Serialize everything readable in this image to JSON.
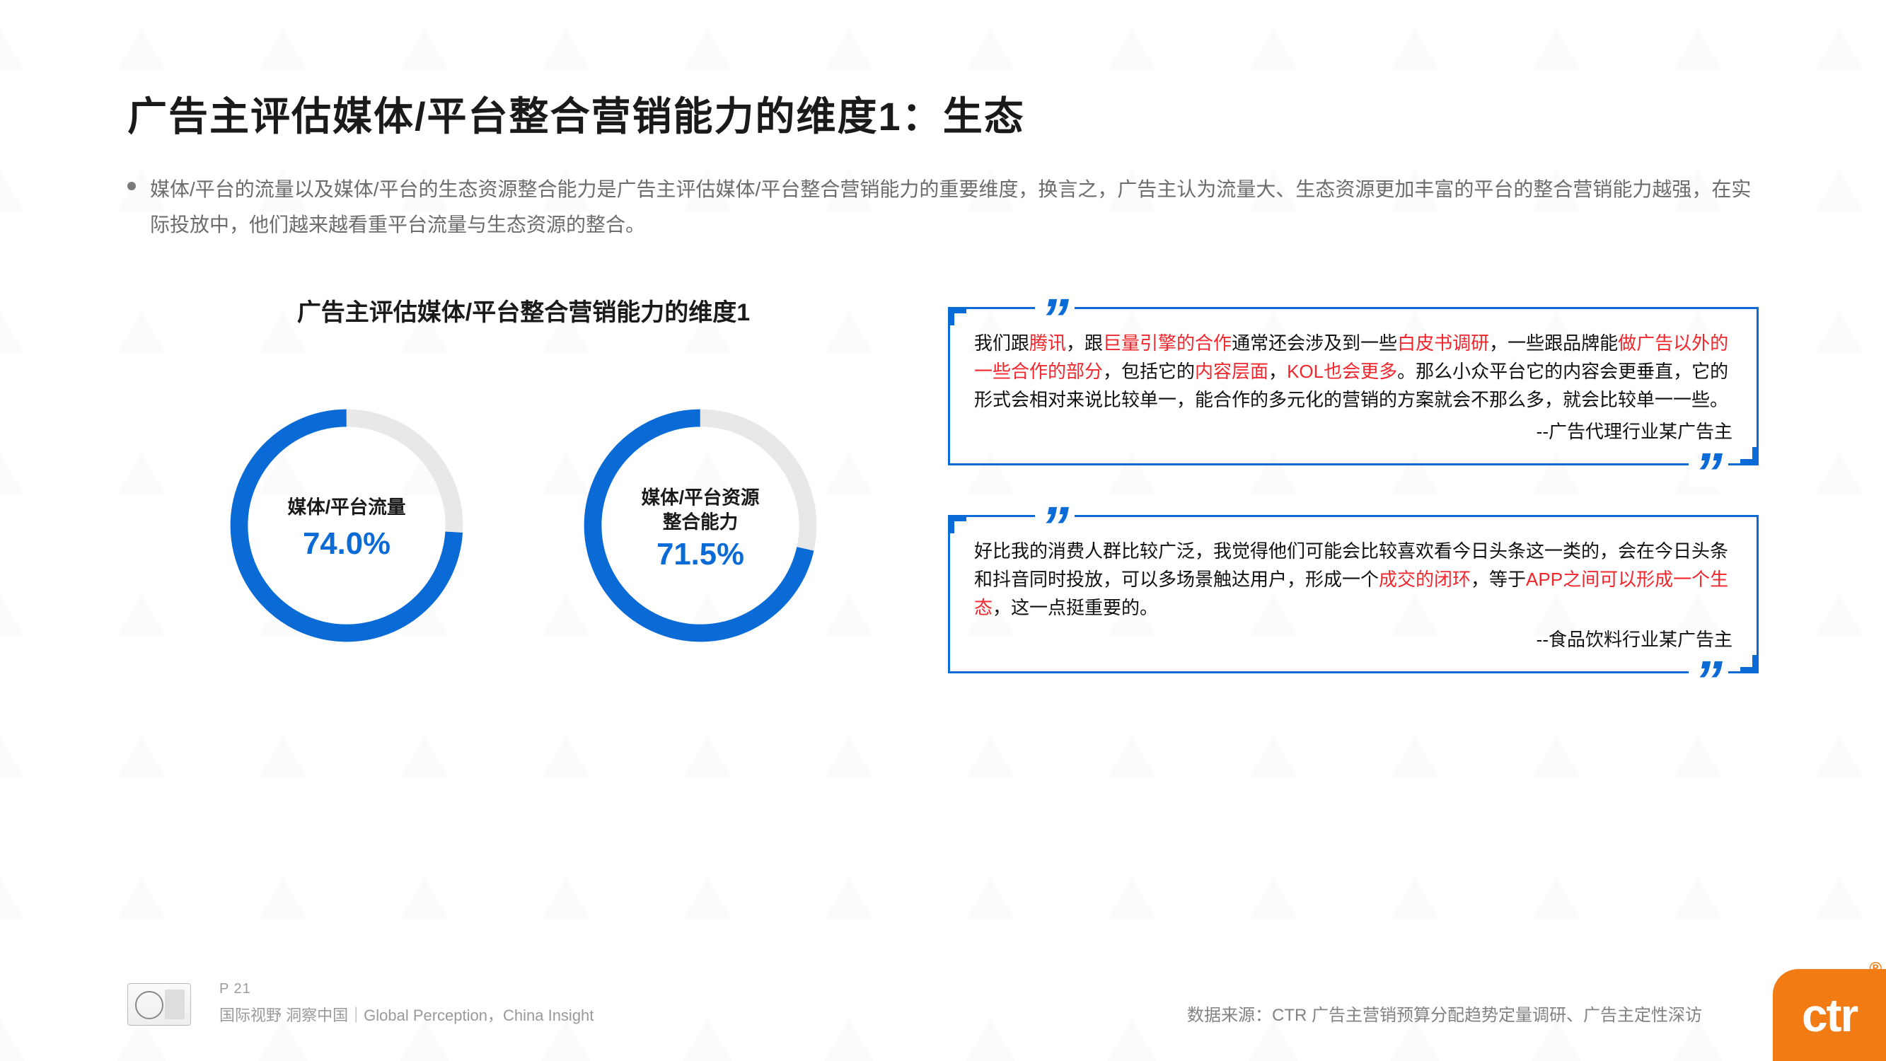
{
  "title": "广告主评估媒体/平台整合营销能力的维度1：生态",
  "bullet": "媒体/平台的流量以及媒体/平台的生态资源整合能力是广告主评估媒体/平台整合营销能力的重要维度，换言之，广告主认为流量大、生态资源更加丰富的平台的整合营销能力越强，在实际投放中，他们越来越看重平台流量与生态资源的整合。",
  "chart": {
    "type": "donut-pair",
    "title": "广告主评估媒体/平台整合营销能力的维度1",
    "ring_color": "#0a6bd6",
    "track_color": "#e8e8e8",
    "ring_width": 26,
    "radius": 160,
    "percent_color": "#0a6bd6",
    "label_color": "#1a1a1a",
    "label_fontsize": 28,
    "percent_fontsize": 46,
    "charts": [
      {
        "label_line1": "媒体/平台流量",
        "label_line2": "",
        "value": 74.0,
        "display": "74.0%"
      },
      {
        "label_line1": "媒体/平台资源",
        "label_line2": "整合能力",
        "value": 71.5,
        "display": "71.5%"
      }
    ]
  },
  "quotes": [
    {
      "border_color": "#0a6bd6",
      "segments": [
        {
          "t": "我们跟",
          "hl": false
        },
        {
          "t": "腾讯",
          "hl": true
        },
        {
          "t": "，跟",
          "hl": false
        },
        {
          "t": "巨量引擎的合作",
          "hl": true
        },
        {
          "t": "通常还会涉及到一些",
          "hl": false
        },
        {
          "t": "白皮书调研",
          "hl": true
        },
        {
          "t": "，一些跟品牌能",
          "hl": false
        },
        {
          "t": "做广告以外的一些合作的部分",
          "hl": true
        },
        {
          "t": "，包括它的",
          "hl": false
        },
        {
          "t": "内容层面",
          "hl": true
        },
        {
          "t": "，",
          "hl": false
        },
        {
          "t": "KOL也会更多",
          "hl": true
        },
        {
          "t": "。那么小众平台它的内容会更垂直，它的形式会相对来说比较单一，能合作的多元化的营销的方案就会不那么多，就会比较单一一些。",
          "hl": false
        }
      ],
      "attribution": "--广告代理行业某广告主"
    },
    {
      "border_color": "#0a6bd6",
      "segments": [
        {
          "t": "好比我的消费人群比较广泛，我觉得他们可能会比较喜欢看今日头条这一类的，会在今日头条和抖音同时投放，可以多场景触达用户，形成一个",
          "hl": false
        },
        {
          "t": "成交的闭环",
          "hl": true
        },
        {
          "t": "，等于",
          "hl": false
        },
        {
          "t": "APP之间可以形成一个生态",
          "hl": true
        },
        {
          "t": "，这一点挺重要的。",
          "hl": false
        }
      ],
      "attribution": "--食品饮料行业某广告主"
    }
  ],
  "footer": {
    "page": "P 21",
    "tagline": "国际视野 洞察中国｜Global Perception，China Insight",
    "source": "数据来源：CTR 广告主营销预算分配趋势定量调研、广告主定性深访",
    "logo_text": "ctr"
  }
}
